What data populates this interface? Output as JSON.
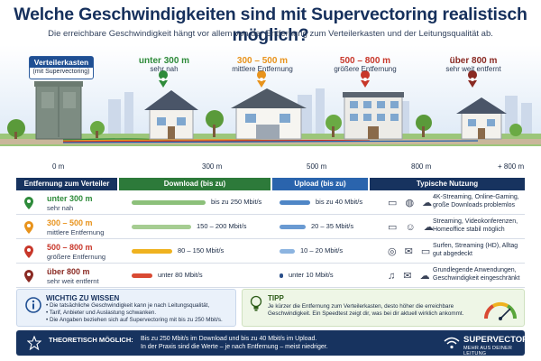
{
  "header": {
    "title": "Welche Geschwindigkeiten sind mit Supervectoring realistisch möglich?",
    "subtitle": "Die erreichbare Geschwindigkeit hängt vor allem von der Entfernung zum Verteilerkasten und der Leitungsqualität ab."
  },
  "scene": {
    "cabinet_title": "Verteilerkasten",
    "cabinet_sub": "(mit Supervectoring)",
    "locations": [
      {
        "distance": "unter 300 m",
        "label": "sehr nah",
        "color": "#2e8b3a"
      },
      {
        "distance": "300 – 500 m",
        "label": "mittlere Entfernung",
        "color": "#e8931c"
      },
      {
        "distance": "500 – 800 m",
        "label": "größere Entfernung",
        "color": "#c8372a"
      },
      {
        "distance": "über 800 m",
        "label": "sehr weit entfernt",
        "color": "#8a2a23"
      }
    ],
    "axis": [
      "0 m",
      "300 m",
      "500 m",
      "800 m",
      "+ 800 m"
    ]
  },
  "table": {
    "headers": [
      "Entfernung zum Verteiler",
      "Download (bis zu)",
      "Upload (bis zu)",
      "Typische Nutzung"
    ],
    "header_colors": [
      "#17335f",
      "#2d7a3a",
      "#2a64ad",
      "#17335f"
    ],
    "rows": [
      {
        "distance": "unter 300 m",
        "desc": "sehr nah",
        "pin_color": "#2e8b3a",
        "download": "bis zu 250 Mbit/s",
        "download_level": 1.0,
        "download_color": "#8cc07a",
        "upload": "bis zu 40 Mbit/s",
        "upload_level": 1.0,
        "upload_color": "#4f86c6",
        "icons": "▭ ◍ ☁",
        "usage": "4K-Streaming, Online-Gaming, große Downloads problemlos"
      },
      {
        "distance": "300 – 500 m",
        "desc": "mittlere Entfernung",
        "pin_color": "#e8931c",
        "download": "150 – 200 Mbit/s",
        "download_level": 0.8,
        "download_color": "#a6cd92",
        "upload": "20 – 35 Mbit/s",
        "upload_level": 0.85,
        "upload_color": "#6a9ad2",
        "icons": "▭ ☺ ☁",
        "usage": "Streaming, Videokonferenzen, Homeoffice stabil möglich"
      },
      {
        "distance": "500 – 800 m",
        "desc": "größere Entfernung",
        "pin_color": "#c8372a",
        "download": "80 – 150 Mbit/s",
        "download_level": 0.55,
        "download_color": "#efb21f",
        "upload": "10 – 20 Mbit/s",
        "upload_level": 0.5,
        "upload_color": "#8cb4e0",
        "icons": "◎ ✉ ▭",
        "usage": "Surfen, Streaming (HD), Alltag gut abgedeckt"
      },
      {
        "distance": "über 800 m",
        "desc": "sehr weit entfernt",
        "pin_color": "#8a2a23",
        "download": "unter 80 Mbit/s",
        "download_level": 0.28,
        "download_color": "#d94a33",
        "upload": "unter 10 Mbit/s",
        "upload_level": 0.08,
        "upload_color": "#2a4f8a",
        "icons": "♫ ✉ ☁",
        "usage": "Grundlegende Anwendungen, Geschwindigkeit eingeschränkt"
      }
    ]
  },
  "info": {
    "title": "WICHTIG ZU WISSEN",
    "items": [
      "Die tatsächliche Geschwindigkeit kann je nach Leitungsqualität,",
      "Tarif, Anbieter und Auslastung schwanken.",
      "Die Angaben beziehen sich auf Supervectoring mit bis zu 250 Mbit/s."
    ]
  },
  "tip": {
    "title": "TIPP",
    "text": "Je kürzer die Entfernung zum Verteilerkasten, desto höher die erreichbare Geschwindigkeit. Ein Speedtest zeigt dir, was bei dir aktuell wirklich ankommt."
  },
  "footer": {
    "title": "THEORETISCH MÖGLICH:",
    "line1": "Bis zu 250 Mbit/s im Download und bis zu 40 Mbit/s im Upload.",
    "line2": "In der Praxis sind die Werte – je nach Entfernung – meist niedriger.",
    "brand": "SUPERVECTORING",
    "tagline": "MEHR AUS DEINER LEITUNG"
  }
}
